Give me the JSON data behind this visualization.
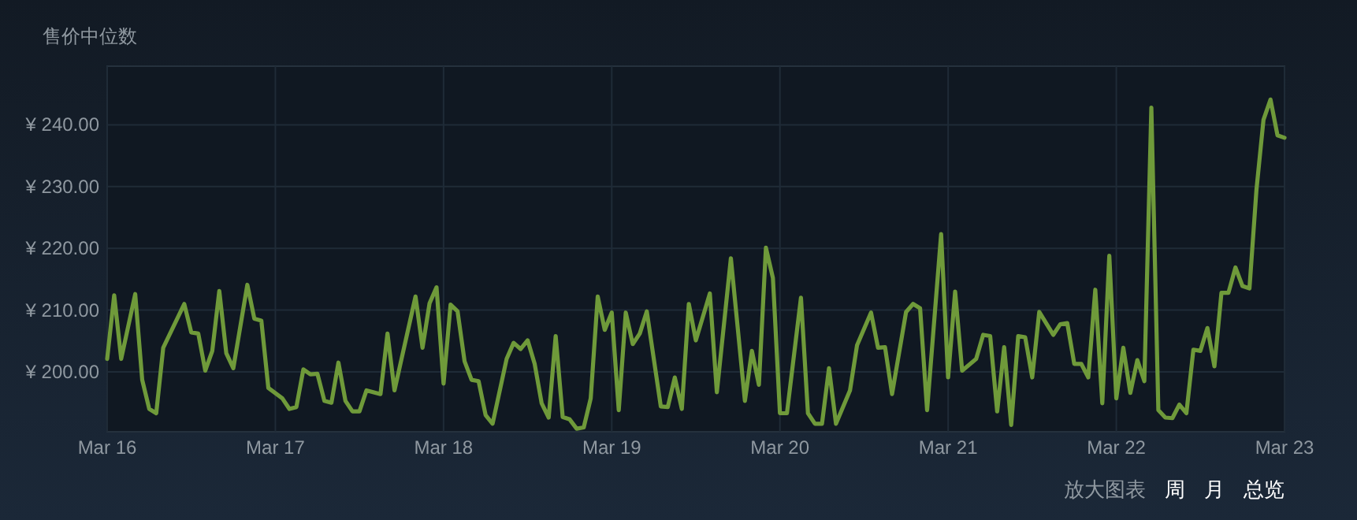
{
  "chart_data": {
    "type": "line",
    "title": "售价中位数",
    "x": [
      "--03-16T00:00",
      "--03-16T01:00",
      "--03-16T02:00",
      "--03-16T04:00",
      "--03-16T05:00",
      "--03-16T06:00",
      "--03-16T07:00",
      "--03-16T08:00",
      "--03-16T11:00",
      "--03-16T12:00",
      "--03-16T13:00",
      "--03-16T14:00",
      "--03-16T15:00",
      "--03-16T16:00",
      "--03-16T17:00",
      "--03-16T18:00",
      "--03-16T20:00",
      "--03-16T21:00",
      "--03-16T22:00",
      "--03-16T23:00",
      "--03-17T01:00",
      "--03-17T02:00",
      "--03-17T03:00",
      "--03-17T04:00",
      "--03-17T05:00",
      "--03-17T06:00",
      "--03-17T07:00",
      "--03-17T08:00",
      "--03-17T09:00",
      "--03-17T10:00",
      "--03-17T11:00",
      "--03-17T12:00",
      "--03-17T13:00",
      "--03-17T15:00",
      "--03-17T16:00",
      "--03-17T17:00",
      "--03-17T20:00",
      "--03-17T21:00",
      "--03-17T22:00",
      "--03-17T23:00",
      "--03-18T00:00",
      "--03-18T01:00",
      "--03-18T02:00",
      "--03-18T03:00",
      "--03-18T04:00",
      "--03-18T05:00",
      "--03-18T06:00",
      "--03-18T07:00",
      "--03-18T09:00",
      "--03-18T10:00",
      "--03-18T11:00",
      "--03-18T12:00",
      "--03-18T13:00",
      "--03-18T14:00",
      "--03-18T15:00",
      "--03-18T16:00",
      "--03-18T17:00",
      "--03-18T18:00",
      "--03-18T19:00",
      "--03-18T20:00",
      "--03-18T21:00",
      "--03-18T22:00",
      "--03-18T23:00",
      "--03-19T00:00",
      "--03-19T01:00",
      "--03-19T02:00",
      "--03-19T03:00",
      "--03-19T04:00",
      "--03-19T05:00",
      "--03-19T07:00",
      "--03-19T08:00",
      "--03-19T09:00",
      "--03-19T10:00",
      "--03-19T11:00",
      "--03-19T12:00",
      "--03-19T14:00",
      "--03-19T15:00",
      "--03-19T17:00",
      "--03-19T19:00",
      "--03-19T20:00",
      "--03-19T21:00",
      "--03-19T22:00",
      "--03-19T23:00",
      "--03-20T00:00",
      "--03-20T01:00",
      "--03-20T03:00",
      "--03-20T04:00",
      "--03-20T05:00",
      "--03-20T06:00",
      "--03-20T07:00",
      "--03-20T08:00",
      "--03-20T10:00",
      "--03-20T11:00",
      "--03-20T13:00",
      "--03-20T14:00",
      "--03-20T15:00",
      "--03-20T16:00",
      "--03-20T18:00",
      "--03-20T19:00",
      "--03-20T20:00",
      "--03-20T21:00",
      "--03-20T23:00",
      "--03-21T00:00",
      "--03-21T01:00",
      "--03-21T02:00",
      "--03-21T04:00",
      "--03-21T05:00",
      "--03-21T06:00",
      "--03-21T07:00",
      "--03-21T08:00",
      "--03-21T09:00",
      "--03-21T10:00",
      "--03-21T11:00",
      "--03-21T12:00",
      "--03-21T13:00",
      "--03-21T15:00",
      "--03-21T16:00",
      "--03-21T17:00",
      "--03-21T18:00",
      "--03-21T19:00",
      "--03-21T20:00",
      "--03-21T21:00",
      "--03-21T22:00",
      "--03-21T23:00",
      "--03-22T00:00",
      "--03-22T01:00",
      "--03-22T02:00",
      "--03-22T03:00",
      "--03-22T04:00",
      "--03-22T05:00",
      "--03-22T06:00",
      "--03-22T07:00",
      "--03-22T08:00",
      "--03-22T09:00",
      "--03-22T10:00",
      "--03-22T11:00",
      "--03-22T12:00",
      "--03-22T13:00",
      "--03-22T14:00",
      "--03-22T15:00",
      "--03-22T16:00",
      "--03-22T17:00",
      "--03-22T18:00",
      "--03-22T19:00",
      "--03-22T20:00",
      "--03-22T21:00",
      "--03-22T22:00",
      "--03-22T23:00",
      "--03-23T00:00"
    ],
    "series": [
      {
        "color": "#6f9a3a",
        "values": [
          202.1,
          212.4,
          202.1,
          212.6,
          198.7,
          194.0,
          193.3,
          203.9,
          211.0,
          206.4,
          206.2,
          200.2,
          203.4,
          213.1,
          203.0,
          200.6,
          214.1,
          208.6,
          208.3,
          197.4,
          195.7,
          194.0,
          194.3,
          200.4,
          199.6,
          199.7,
          195.3,
          195.0,
          201.5,
          195.3,
          193.6,
          193.6,
          197.0,
          196.4,
          206.2,
          197.0,
          212.2,
          203.9,
          211.1,
          213.7,
          198.1,
          210.9,
          209.8,
          201.7,
          198.7,
          198.5,
          193.0,
          191.6,
          202.1,
          204.7,
          203.7,
          205.1,
          201.3,
          194.9,
          192.6,
          205.8,
          192.7,
          192.3,
          190.8,
          191.0,
          195.7,
          212.2,
          206.8,
          209.6,
          193.8,
          209.6,
          204.5,
          206.2,
          209.8,
          194.4,
          194.3,
          199.1,
          194.0,
          211.0,
          205.1,
          212.7,
          196.7,
          218.4,
          195.3,
          203.4,
          197.9,
          220.1,
          215.2,
          193.3,
          193.3,
          212.0,
          193.3,
          191.6,
          191.6,
          200.6,
          191.6,
          197.0,
          204.3,
          209.6,
          203.9,
          204.0,
          196.4,
          209.7,
          211.0,
          210.3,
          193.8,
          222.3,
          199.1,
          213.0,
          200.2,
          202.1,
          206.0,
          205.8,
          193.6,
          204.0,
          191.4,
          205.8,
          205.6,
          199.1,
          209.7,
          206.0,
          207.7,
          207.9,
          201.3,
          201.3,
          199.1,
          213.3,
          194.9,
          218.8,
          195.7,
          203.9,
          196.6,
          201.9,
          198.5,
          242.8,
          193.8,
          192.6,
          192.5,
          194.7,
          193.3,
          203.6,
          203.4,
          207.1,
          200.9,
          212.8,
          212.8,
          216.9,
          213.9,
          213.5,
          229.5,
          240.8,
          244.1,
          238.3,
          237.9
        ]
      }
    ],
    "xlim": [
      "--03-16T00:00",
      "--03-23T00:00"
    ],
    "xticks": [
      {
        "value": "--03-16",
        "label": "Mar 16"
      },
      {
        "value": "--03-17",
        "label": "Mar 17"
      },
      {
        "value": "--03-18",
        "label": "Mar 18"
      },
      {
        "value": "--03-19",
        "label": "Mar 19"
      },
      {
        "value": "--03-20",
        "label": "Mar 20"
      },
      {
        "value": "--03-21",
        "label": "Mar 21"
      },
      {
        "value": "--03-22",
        "label": "Mar 22"
      },
      {
        "value": "--03-23",
        "label": "Mar 23"
      }
    ],
    "ylim": [
      190.3,
      249.5
    ],
    "yticks": [
      {
        "value": 200,
        "label": "¥ 200.00"
      },
      {
        "value": 210,
        "label": "¥ 210.00"
      },
      {
        "value": 220,
        "label": "¥ 220.00"
      },
      {
        "value": 230,
        "label": "¥ 230.00"
      },
      {
        "value": 240,
        "label": "¥ 240.00"
      }
    ],
    "grid": true,
    "marker": "none",
    "line_style": "solid",
    "annotations": [
      "放大图表",
      "周",
      "月",
      "总览"
    ]
  }
}
